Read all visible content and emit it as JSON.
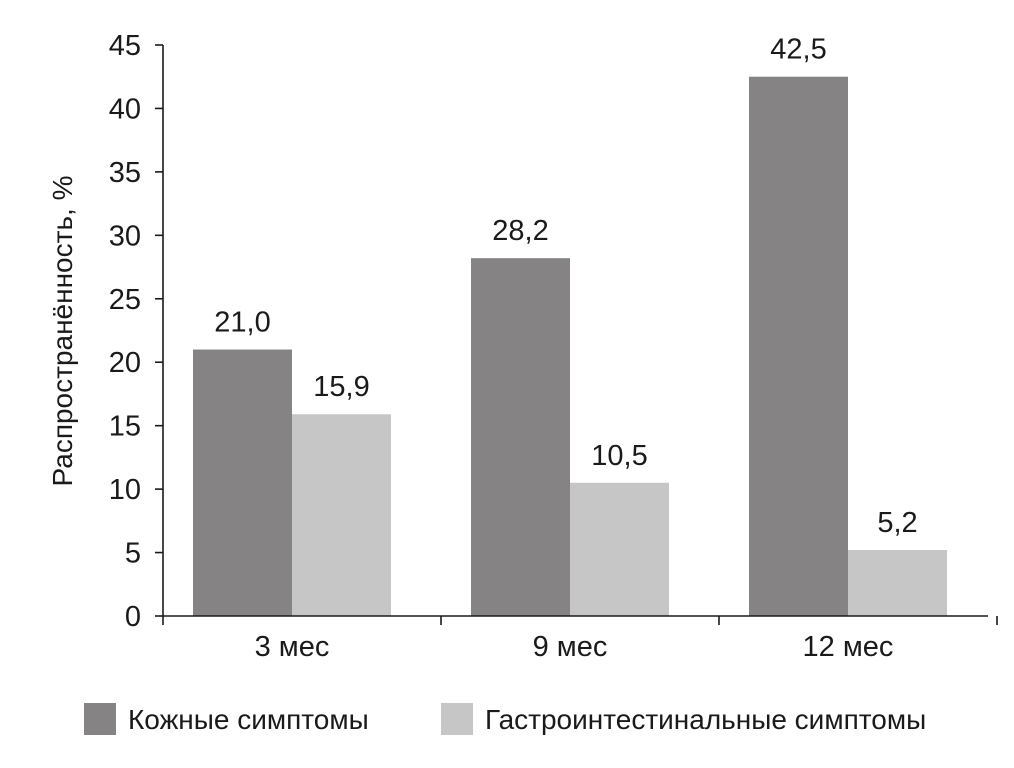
{
  "chart_data": {
    "type": "bar",
    "title": "",
    "xlabel": "",
    "ylabel": "Распространённость, %",
    "ylim": [
      0,
      45
    ],
    "yticks": [
      0,
      5,
      10,
      15,
      20,
      25,
      30,
      35,
      40,
      45
    ],
    "categories": [
      "3 мес",
      "9 мес",
      "12 мес"
    ],
    "series": [
      {
        "name": "Кожные симптомы",
        "color": "#858383",
        "values": [
          21.0,
          28.2,
          42.5
        ],
        "labels": [
          "21,0",
          "28,2",
          "42,5"
        ]
      },
      {
        "name": "Гастроинтестинальные симптомы",
        "color": "#c6c6c6",
        "values": [
          15.9,
          10.5,
          5.2
        ],
        "labels": [
          "15,9",
          "10,5",
          "5,2"
        ]
      }
    ],
    "grid": false,
    "legend_position": "bottom"
  }
}
